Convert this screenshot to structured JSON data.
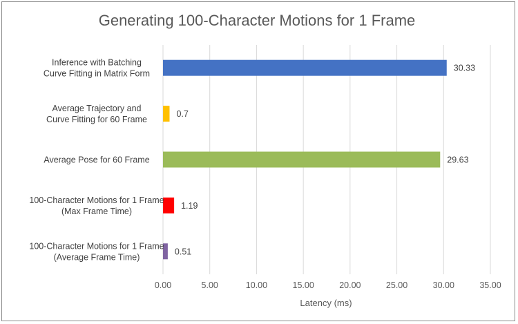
{
  "chart_data": {
    "type": "bar",
    "orientation": "horizontal",
    "title": "Generating 100-Character Motions for 1 Frame",
    "xlabel": "Latency (ms)",
    "ylabel": "",
    "xlim": [
      0,
      35
    ],
    "grid": true,
    "ticks": [
      "0.00",
      "5.00",
      "10.00",
      "15.00",
      "20.00",
      "25.00",
      "30.00",
      "35.00"
    ],
    "bars": [
      {
        "label_lines": [
          "Inference with Batching",
          "Curve Fitting in Matrix Form"
        ],
        "value": 30.33,
        "value_label": "30.33",
        "color": "#4472c4"
      },
      {
        "label_lines": [
          "Average Trajectory and",
          "Curve Fitting for 60 Frame"
        ],
        "value": 0.7,
        "value_label": "0.7",
        "color": "#ffc000"
      },
      {
        "label_lines": [
          "Average Pose for 60 Frame"
        ],
        "value": 29.63,
        "value_label": "29.63",
        "color": "#9bbb59"
      },
      {
        "label_lines": [
          "100-Character Motions for 1 Frame",
          "(Max Frame Time)"
        ],
        "value": 1.19,
        "value_label": "1.19",
        "color": "#ff0000"
      },
      {
        "label_lines": [
          "100-Character Motions for 1 Frame",
          "(Average Frame Time)"
        ],
        "value": 0.51,
        "value_label": "0.51",
        "color": "#8064a2"
      }
    ]
  }
}
